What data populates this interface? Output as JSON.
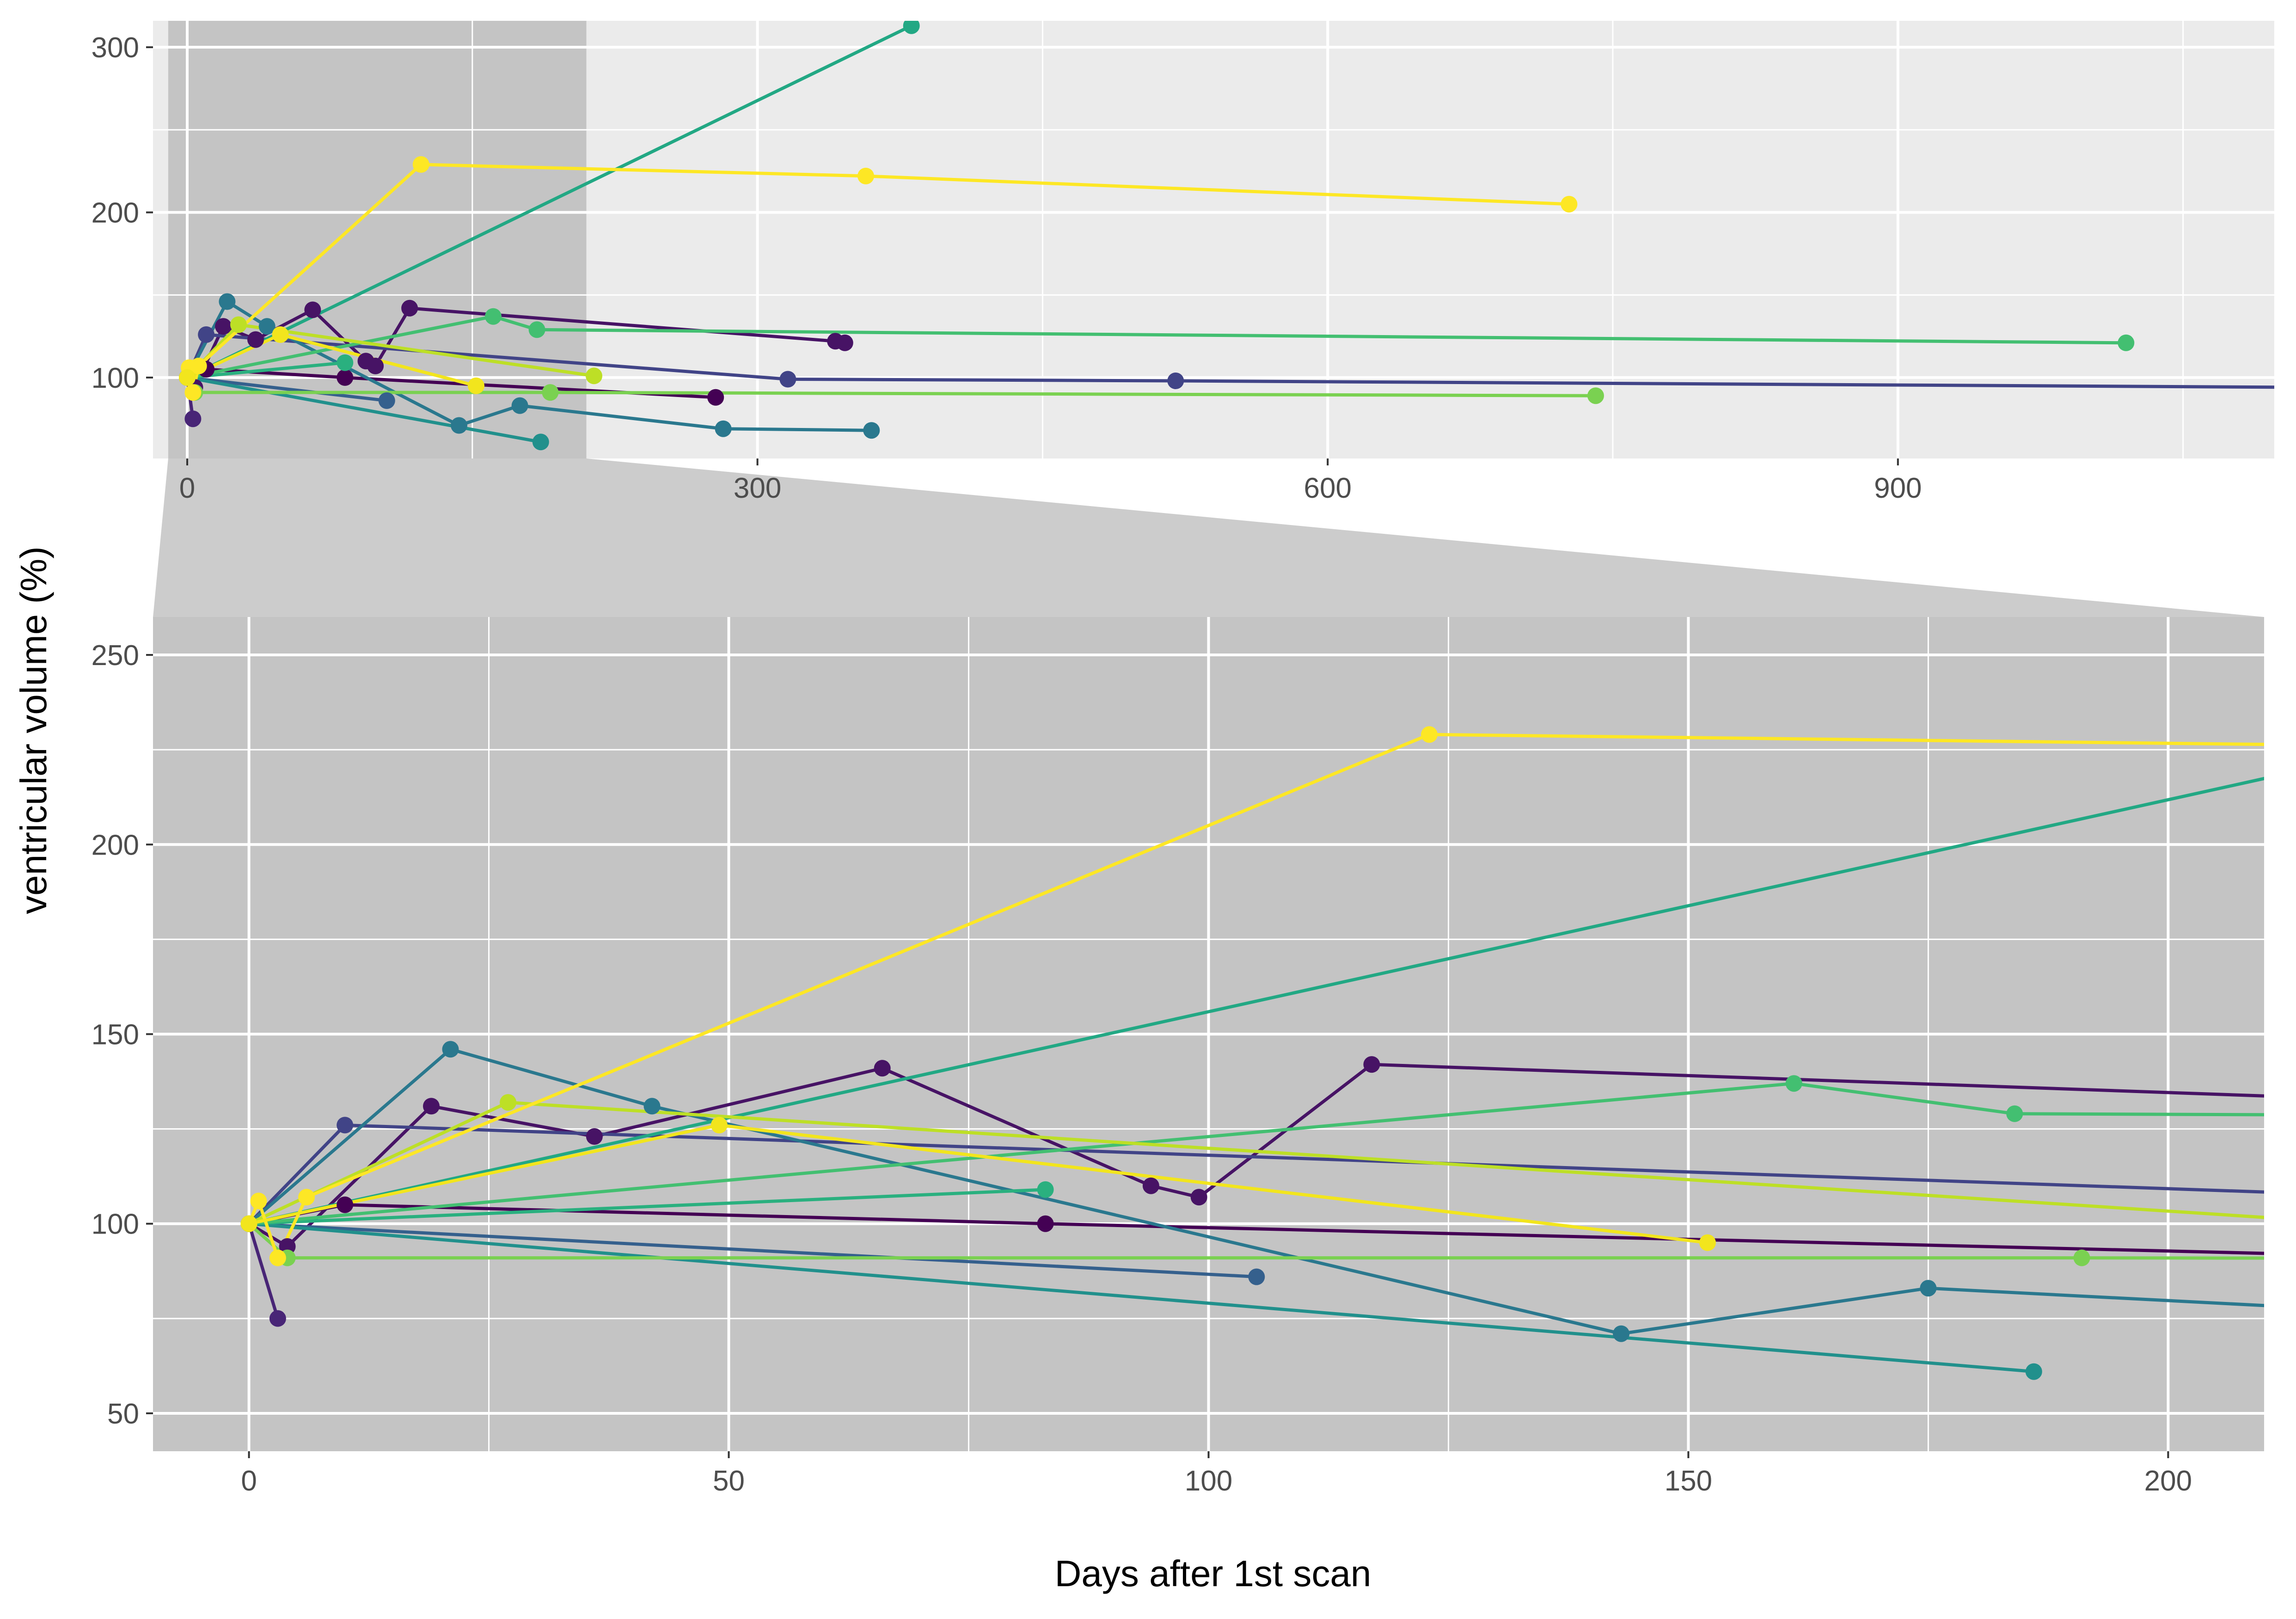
{
  "chart_data": {
    "type": "line",
    "xlabel": "Days after 1st scan",
    "ylabel": "ventricular volume (%)",
    "colors": [
      "#440154",
      "#471365",
      "#482576",
      "#414487",
      "#35608d",
      "#2a788e",
      "#21908c",
      "#22a884",
      "#43bf71",
      "#7ad151",
      "#bddf26",
      "#fde725"
    ],
    "overview": {
      "xlim": [
        -18,
        1098
      ],
      "ylim": [
        51,
        316
      ],
      "xticks": [
        0,
        300,
        600,
        900
      ],
      "yticks": [
        100,
        200,
        300
      ],
      "zoom_region": {
        "xlim": [
          -10,
          210
        ]
      }
    },
    "zoom": {
      "xlim": [
        -10,
        210
      ],
      "ylim": [
        40,
        260
      ],
      "xticks": [
        0,
        50,
        100,
        150,
        200
      ],
      "yticks": [
        50,
        100,
        150,
        200,
        250
      ]
    },
    "series": [
      {
        "color": "#440154",
        "x": [
          0,
          10,
          83,
          278
        ],
        "y": [
          100,
          105,
          100,
          88
        ]
      },
      {
        "color": "#471365",
        "x": [
          0,
          4,
          19,
          36,
          66,
          94,
          99,
          117,
          341,
          346
        ],
        "y": [
          100,
          94,
          131,
          123,
          141,
          110,
          107,
          142,
          122,
          121
        ]
      },
      {
        "color": "#482576",
        "x": [
          0,
          3
        ],
        "y": [
          100,
          75
        ]
      },
      {
        "color": "#414487",
        "x": [
          0,
          10,
          316,
          520,
          1120
        ],
        "y": [
          100,
          126,
          99,
          98,
          94
        ]
      },
      {
        "color": "#35608d",
        "x": [
          0,
          105
        ],
        "y": [
          100,
          86
        ]
      },
      {
        "color": "#2a788e",
        "x": [
          0,
          21,
          42,
          143,
          175,
          282,
          360
        ],
        "y": [
          100,
          146,
          131,
          71,
          83,
          69,
          68
        ]
      },
      {
        "color": "#21908c",
        "x": [
          0,
          186
        ],
        "y": [
          100,
          61
        ]
      },
      {
        "color": "#22a884",
        "x": [
          0,
          381
        ],
        "y": [
          100,
          313
        ]
      },
      {
        "color": "#2ab07f",
        "x": [
          0,
          83
        ],
        "y": [
          100,
          109
        ]
      },
      {
        "color": "#43bf71",
        "x": [
          0,
          161,
          184,
          1020
        ],
        "y": [
          100,
          137,
          129,
          121
        ]
      },
      {
        "color": "#7ad151",
        "x": [
          0,
          4,
          191,
          741
        ],
        "y": [
          100,
          91,
          91,
          89
        ]
      },
      {
        "color": "#bddf26",
        "x": [
          0,
          27,
          214
        ],
        "y": [
          100,
          132,
          101
        ]
      },
      {
        "color": "#fde725",
        "x": [
          0,
          1,
          3,
          6,
          123,
          357,
          727
        ],
        "y": [
          100,
          106,
          91,
          107,
          229,
          222,
          205
        ]
      },
      {
        "color": "#f2e51d",
        "x": [
          0,
          49,
          152
        ],
        "y": [
          100,
          126,
          95
        ]
      }
    ]
  }
}
